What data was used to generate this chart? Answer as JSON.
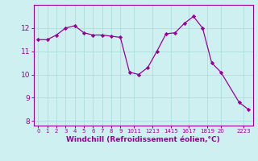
{
  "x": [
    0,
    1,
    2,
    3,
    4,
    5,
    6,
    7,
    8,
    9,
    10,
    11,
    12,
    13,
    14,
    15,
    16,
    17,
    18,
    19,
    20,
    22,
    23
  ],
  "y": [
    11.5,
    11.5,
    11.7,
    12.0,
    12.1,
    11.8,
    11.7,
    11.7,
    11.65,
    11.6,
    10.1,
    10.0,
    10.3,
    11.0,
    11.75,
    11.8,
    12.2,
    12.5,
    12.0,
    10.5,
    10.1,
    8.8,
    8.5
  ],
  "line_color": "#990099",
  "marker_color": "#990099",
  "bg_color": "#cff0f0",
  "grid_color": "#aadddd",
  "axis_color": "#990099",
  "tick_color": "#990099",
  "xlabel": "Windchill (Refroidissement éolien,°C)",
  "xlabel_color": "#990099",
  "ylim": [
    7.8,
    13.0
  ],
  "xlim": [
    -0.5,
    23.5
  ],
  "yticks": [
    8,
    9,
    10,
    11,
    12
  ],
  "xtick_positions": [
    0,
    1,
    2,
    3,
    4,
    5,
    6,
    7,
    8,
    9,
    10.5,
    12.5,
    14.5,
    16.5,
    18.5,
    20,
    22.5
  ],
  "xtick_labels": [
    "0",
    "1",
    "2",
    "3",
    "4",
    "5",
    "6",
    "7",
    "8",
    "9",
    "1011",
    "1213",
    "1415",
    "1617",
    "1819",
    "20",
    "2223"
  ]
}
